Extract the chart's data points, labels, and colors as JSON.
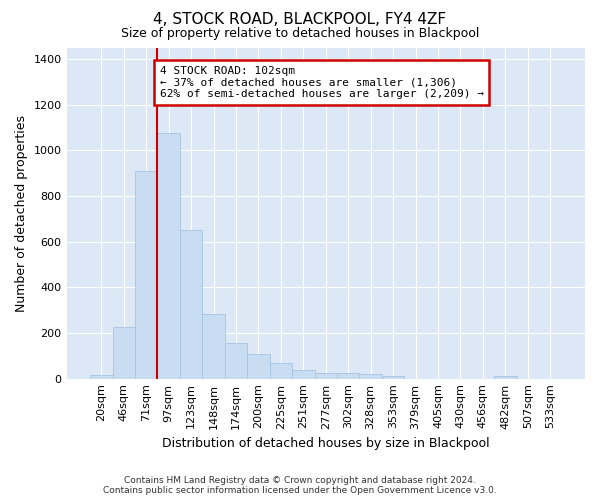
{
  "title": "4, STOCK ROAD, BLACKPOOL, FY4 4ZF",
  "subtitle": "Size of property relative to detached houses in Blackpool",
  "xlabel": "Distribution of detached houses by size in Blackpool",
  "ylabel": "Number of detached properties",
  "bar_color": "#c9ddf2",
  "bar_edge_color": "#a8c4e0",
  "background_color": "#dce8f5",
  "grid_color": "#ffffff",
  "annotation_line_color": "#cc0000",
  "annotation_box_edge_color": "#cc0000",
  "annotation_text_line1": "4 STOCK ROAD: 102sqm",
  "annotation_text_line2": "← 37% of detached houses are smaller (1,306)",
  "annotation_text_line3": "62% of semi-detached houses are larger (2,209) →",
  "footer_line1": "Contains HM Land Registry data © Crown copyright and database right 2024.",
  "footer_line2": "Contains public sector information licensed under the Open Government Licence v3.0.",
  "categories": [
    "20sqm",
    "46sqm",
    "71sqm",
    "97sqm",
    "123sqm",
    "148sqm",
    "174sqm",
    "200sqm",
    "225sqm",
    "251sqm",
    "277sqm",
    "302sqm",
    "328sqm",
    "353sqm",
    "379sqm",
    "405sqm",
    "430sqm",
    "456sqm",
    "482sqm",
    "507sqm",
    "533sqm"
  ],
  "values": [
    17,
    225,
    910,
    1075,
    650,
    285,
    158,
    107,
    70,
    38,
    27,
    23,
    20,
    13,
    0,
    0,
    0,
    0,
    10,
    0,
    0
  ],
  "red_line_index": 3,
  "ylim": [
    0,
    1450
  ],
  "yticks": [
    0,
    200,
    400,
    600,
    800,
    1000,
    1200,
    1400
  ],
  "title_fontsize": 11,
  "subtitle_fontsize": 9,
  "axis_label_fontsize": 9,
  "tick_fontsize": 8,
  "annotation_fontsize": 8,
  "footer_fontsize": 6.5
}
